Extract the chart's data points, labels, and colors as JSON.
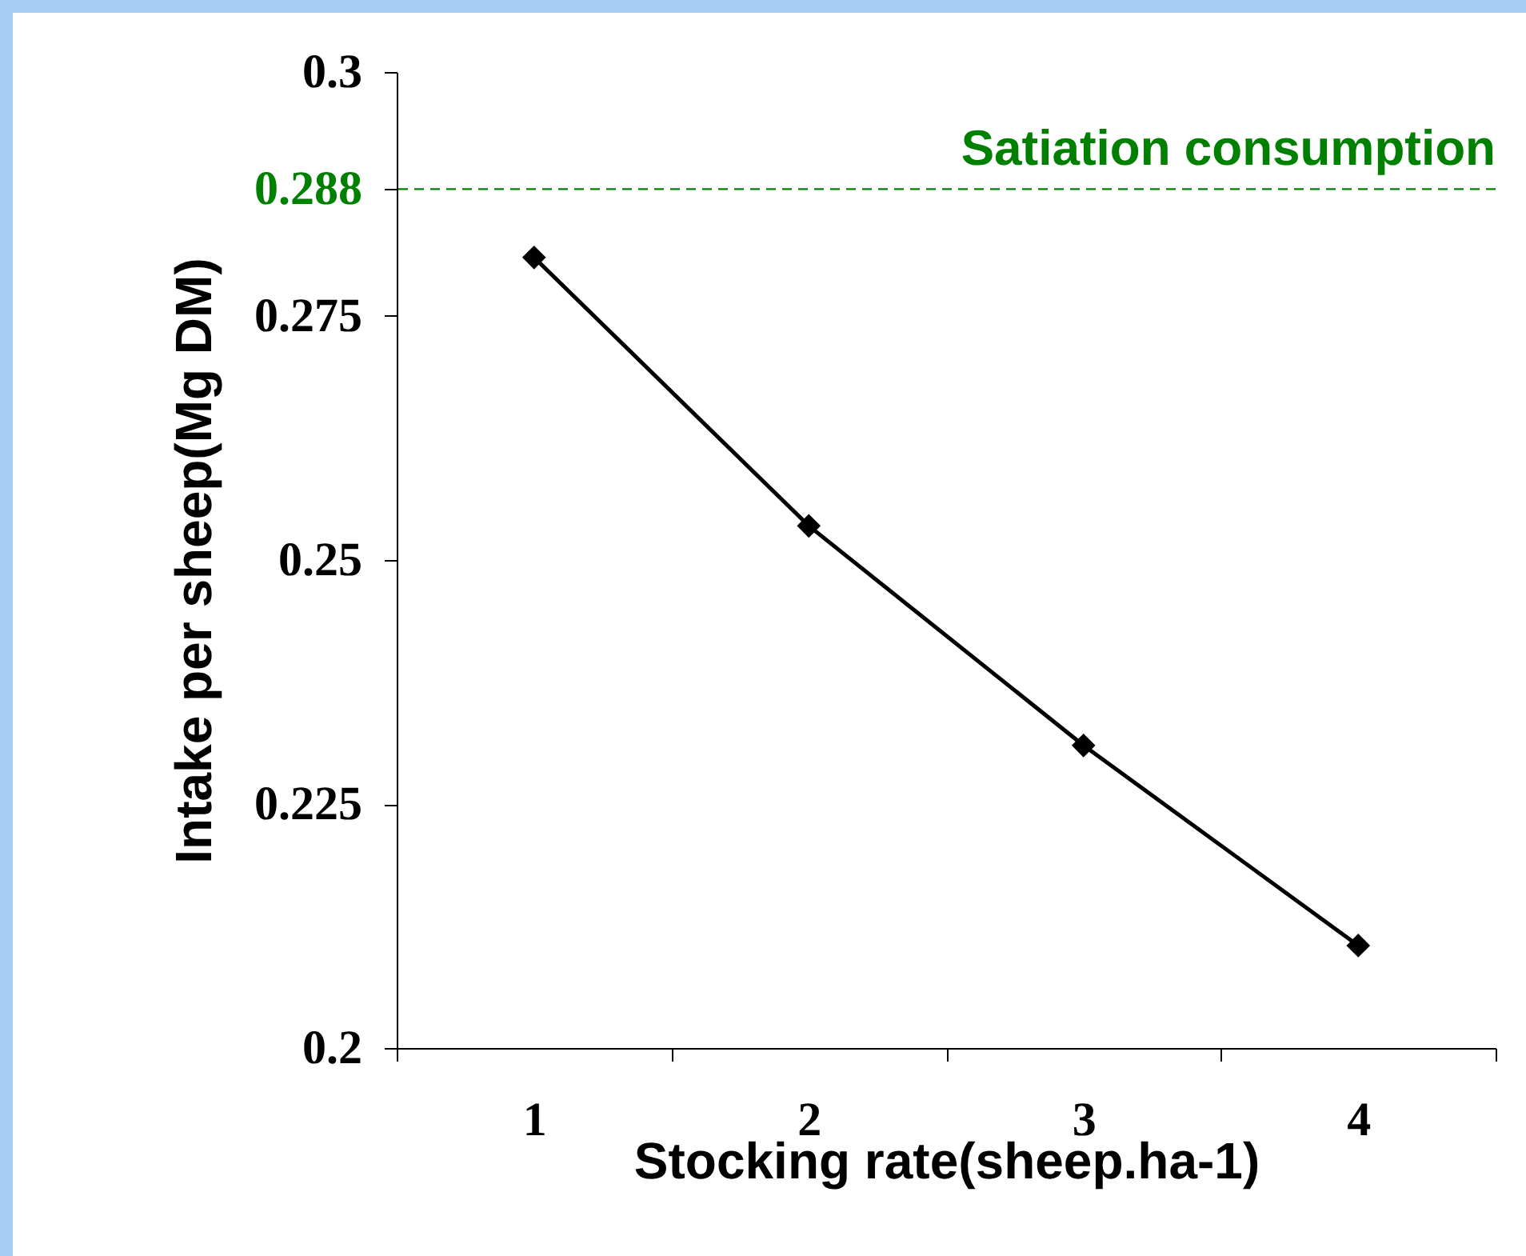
{
  "chart_data": {
    "type": "line",
    "xlabel": "Stocking rate(sheep.ha-1)",
    "ylabel": "Intake per sheep(Mg DM)",
    "categories": [
      "1",
      "2",
      "3",
      "4"
    ],
    "series": [
      {
        "color": "#000000",
        "values": [
          0.281,
          0.2535,
          0.231,
          0.2105
        ]
      }
    ],
    "ylim": [
      0.2,
      0.3
    ],
    "yticks": [
      0.2,
      0.225,
      0.25,
      0.275,
      0.288,
      0.3
    ],
    "ref_lines": [
      {
        "axis": "y",
        "value": 0.288,
        "label": "Satiation consumption",
        "color": "#008000",
        "line_style": "dashed"
      }
    ],
    "marker": "diamond",
    "line_style": "solid",
    "grid": false
  }
}
